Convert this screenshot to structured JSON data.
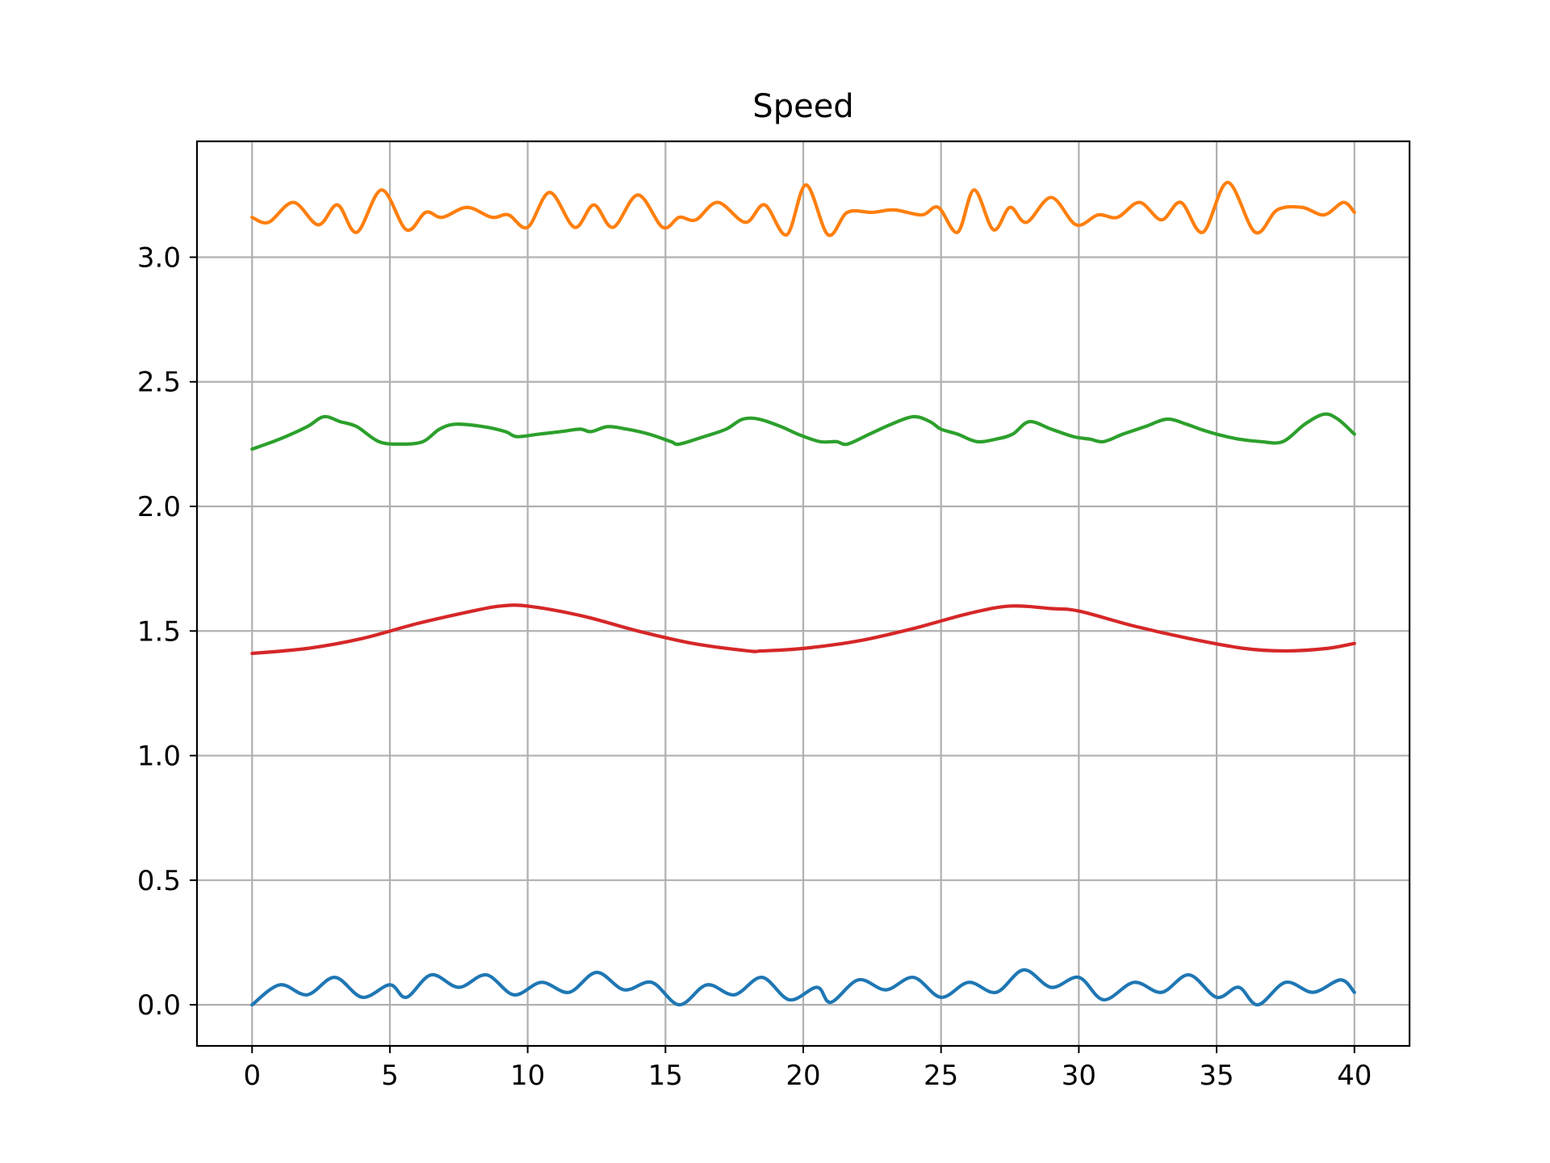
{
  "chart_data": {
    "type": "line",
    "title": "Speed",
    "xlabel": "",
    "ylabel": "",
    "xlim": [
      -2,
      42
    ],
    "ylim": [
      -0.165,
      3.465
    ],
    "x_ticks": [
      0,
      5,
      10,
      15,
      20,
      25,
      30,
      35,
      40
    ],
    "y_ticks": [
      0.0,
      0.5,
      1.0,
      1.5,
      2.0,
      2.5,
      3.0
    ],
    "x_tick_labels": [
      "0",
      "5",
      "10",
      "15",
      "20",
      "25",
      "30",
      "35",
      "40"
    ],
    "y_tick_labels": [
      "0.0",
      "0.5",
      "1.0",
      "1.5",
      "2.0",
      "2.5",
      "3.0"
    ],
    "grid": true,
    "legend": "none",
    "series": [
      {
        "color": "#1f77b4",
        "x": [
          0,
          1,
          2,
          3,
          4,
          5,
          5.6,
          6.5,
          7.5,
          8.5,
          9.5,
          10.5,
          11.5,
          12.5,
          13.5,
          14.5,
          15.5,
          16.5,
          17.5,
          18.5,
          19.5,
          20.5,
          21,
          22,
          23,
          24,
          25,
          26,
          27,
          28,
          29,
          30,
          30.9,
          32,
          33,
          34,
          35,
          35.8,
          36.5,
          37.5,
          38.5,
          39.5,
          40
        ],
        "values": [
          0.0,
          0.08,
          0.04,
          0.11,
          0.03,
          0.08,
          0.03,
          0.12,
          0.07,
          0.12,
          0.04,
          0.09,
          0.05,
          0.13,
          0.06,
          0.09,
          0.0,
          0.08,
          0.04,
          0.11,
          0.02,
          0.07,
          0.01,
          0.1,
          0.06,
          0.11,
          0.03,
          0.09,
          0.05,
          0.14,
          0.07,
          0.11,
          0.02,
          0.09,
          0.05,
          0.12,
          0.03,
          0.07,
          0.0,
          0.09,
          0.05,
          0.1,
          0.05
        ]
      },
      {
        "color": "#ff7f0e",
        "x": [
          0,
          0.6,
          1.5,
          2.4,
          3.1,
          3.8,
          4.7,
          5.6,
          6.3,
          6.9,
          7.8,
          8.7,
          9.3,
          10.0,
          10.8,
          11.7,
          12.4,
          13.1,
          14.0,
          14.9,
          15.5,
          16.1,
          16.9,
          17.9,
          18.6,
          19.4,
          20.1,
          20.9,
          21.6,
          22.5,
          23.3,
          24.3,
          24.9,
          25.6,
          26.2,
          26.9,
          27.5,
          28.1,
          29.0,
          29.9,
          30.7,
          31.4,
          32.2,
          33.0,
          33.7,
          34.5,
          35.4,
          36.4,
          37.2,
          38.1,
          38.9,
          39.6,
          40
        ],
        "values": [
          3.16,
          3.14,
          3.22,
          3.13,
          3.21,
          3.1,
          3.27,
          3.11,
          3.18,
          3.16,
          3.2,
          3.16,
          3.17,
          3.12,
          3.26,
          3.12,
          3.21,
          3.12,
          3.25,
          3.12,
          3.16,
          3.15,
          3.22,
          3.14,
          3.21,
          3.09,
          3.29,
          3.09,
          3.18,
          3.18,
          3.19,
          3.17,
          3.2,
          3.1,
          3.27,
          3.11,
          3.2,
          3.14,
          3.24,
          3.13,
          3.17,
          3.16,
          3.22,
          3.15,
          3.22,
          3.1,
          3.3,
          3.1,
          3.19,
          3.2,
          3.17,
          3.22,
          3.18
        ]
      },
      {
        "color": "#2ca02c",
        "x": [
          0,
          1,
          2,
          2.6,
          3.2,
          3.8,
          4.6,
          5.4,
          6.2,
          6.8,
          7.4,
          8.4,
          9.2,
          9.6,
          10.4,
          11.2,
          11.9,
          12.3,
          12.9,
          13.6,
          14.4,
          15.2,
          15.5,
          16.4,
          17.2,
          17.8,
          18.4,
          19.2,
          19.8,
          20.6,
          21.2,
          21.6,
          22.4,
          23.2,
          24.0,
          24.6,
          25.0,
          25.6,
          26.3,
          27.0,
          27.6,
          28.2,
          29.0,
          29.8,
          30.4,
          30.9,
          31.6,
          32.4,
          33.2,
          33.9,
          34.4,
          35.0,
          35.8,
          36.6,
          37.4,
          38.2,
          38.9,
          39.4,
          40
        ],
        "values": [
          2.23,
          2.27,
          2.32,
          2.36,
          2.34,
          2.32,
          2.26,
          2.25,
          2.26,
          2.31,
          2.33,
          2.32,
          2.3,
          2.28,
          2.29,
          2.3,
          2.31,
          2.3,
          2.32,
          2.31,
          2.29,
          2.26,
          2.25,
          2.28,
          2.31,
          2.35,
          2.35,
          2.32,
          2.29,
          2.26,
          2.26,
          2.25,
          2.29,
          2.33,
          2.36,
          2.34,
          2.31,
          2.29,
          2.26,
          2.27,
          2.29,
          2.34,
          2.31,
          2.28,
          2.27,
          2.26,
          2.29,
          2.32,
          2.35,
          2.33,
          2.31,
          2.29,
          2.27,
          2.26,
          2.26,
          2.33,
          2.37,
          2.35,
          2.29
        ]
      },
      {
        "color": "#d62728",
        "x": [
          0,
          2,
          4,
          6,
          8,
          9,
          10,
          12,
          14,
          16,
          18,
          18.5,
          20,
          22,
          24,
          26,
          27.5,
          29,
          30,
          32,
          34,
          36,
          37.5,
          39,
          40
        ],
        "values": [
          1.41,
          1.43,
          1.47,
          1.53,
          1.58,
          1.6,
          1.6,
          1.56,
          1.5,
          1.45,
          1.42,
          1.42,
          1.43,
          1.46,
          1.51,
          1.57,
          1.6,
          1.59,
          1.58,
          1.52,
          1.47,
          1.43,
          1.42,
          1.43,
          1.45
        ]
      }
    ]
  }
}
